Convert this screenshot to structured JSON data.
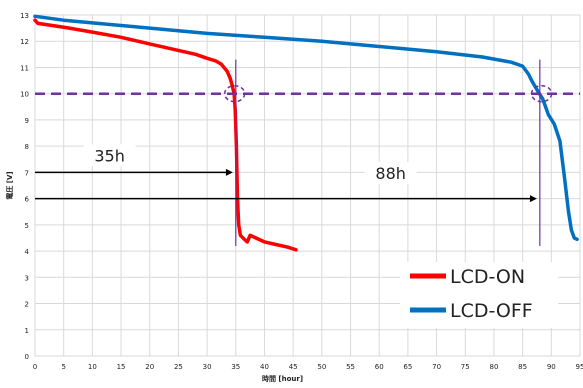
{
  "chart_data": {
    "type": "line",
    "xlabel": "時間 [hour]",
    "ylabel": "電圧 [V]",
    "xlim": [
      0,
      95
    ],
    "ylim": [
      0,
      13
    ],
    "x_ticks": [
      "0",
      "5",
      "10",
      "15",
      "20",
      "25",
      "30",
      "35",
      "40",
      "45",
      "50",
      "55",
      "60",
      "65",
      "70",
      "75",
      "80",
      "85",
      "90",
      "95"
    ],
    "y_ticks": [
      "0",
      "1",
      "2",
      "3",
      "4",
      "5",
      "6",
      "7",
      "8",
      "9",
      "10",
      "11",
      "12",
      "13"
    ],
    "grid": true,
    "legend_position": "bottom-right",
    "threshold_line": {
      "y": 10,
      "color": "#7030a0",
      "style": "dashed"
    },
    "series": [
      {
        "name": "LCD-ON",
        "color": "#ff0000",
        "points": [
          [
            0,
            12.8
          ],
          [
            0.5,
            12.68
          ],
          [
            3,
            12.6
          ],
          [
            6,
            12.5
          ],
          [
            10,
            12.35
          ],
          [
            15,
            12.15
          ],
          [
            20,
            11.9
          ],
          [
            25,
            11.65
          ],
          [
            28,
            11.5
          ],
          [
            30,
            11.35
          ],
          [
            31.5,
            11.25
          ],
          [
            32.5,
            11.12
          ],
          [
            33.5,
            10.85
          ],
          [
            34,
            10.6
          ],
          [
            34.4,
            10.3
          ],
          [
            34.7,
            10.0
          ],
          [
            34.9,
            9.4
          ],
          [
            35.1,
            8.0
          ],
          [
            35.3,
            6.0
          ],
          [
            35.5,
            5.0
          ],
          [
            35.8,
            4.6
          ],
          [
            36.5,
            4.45
          ],
          [
            37,
            4.35
          ],
          [
            37.5,
            4.6
          ],
          [
            38.5,
            4.5
          ],
          [
            40,
            4.35
          ],
          [
            42,
            4.25
          ],
          [
            44,
            4.15
          ],
          [
            45.5,
            4.05
          ]
        ]
      },
      {
        "name": "LCD-OFF",
        "color": "#0070c0",
        "points": [
          [
            0,
            12.95
          ],
          [
            5,
            12.8
          ],
          [
            10,
            12.7
          ],
          [
            20,
            12.5
          ],
          [
            30,
            12.3
          ],
          [
            40,
            12.15
          ],
          [
            50,
            12.0
          ],
          [
            60,
            11.8
          ],
          [
            70,
            11.6
          ],
          [
            78,
            11.4
          ],
          [
            83,
            11.2
          ],
          [
            85,
            11.05
          ],
          [
            86,
            10.75
          ],
          [
            86.7,
            10.45
          ],
          [
            87.5,
            10.15
          ],
          [
            88.5,
            9.8
          ],
          [
            89.5,
            9.2
          ],
          [
            90.5,
            8.85
          ],
          [
            91.5,
            8.2
          ],
          [
            92.3,
            6.8
          ],
          [
            93,
            5.5
          ],
          [
            93.5,
            4.8
          ],
          [
            94,
            4.5
          ],
          [
            94.5,
            4.45
          ]
        ]
      }
    ],
    "markers": [
      {
        "x": 35,
        "y_from": 4.2,
        "y_to": 11.3,
        "color": "#7030a0"
      },
      {
        "x": 88,
        "y_from": 4.2,
        "y_to": 11.3,
        "color": "#7030a0"
      }
    ],
    "circles": [
      {
        "x": 34.8,
        "y": 10
      },
      {
        "x": 88.3,
        "y": 10
      }
    ],
    "arrows": [
      {
        "y": 7,
        "x_from": 0,
        "x_to": 34.5
      },
      {
        "y": 6,
        "x_from": 0,
        "x_to": 87.5
      }
    ],
    "annotations": [
      {
        "text": "35h",
        "x": 13,
        "y": 7.65
      },
      {
        "text": "88h",
        "x": 62,
        "y": 6.98
      }
    ]
  }
}
